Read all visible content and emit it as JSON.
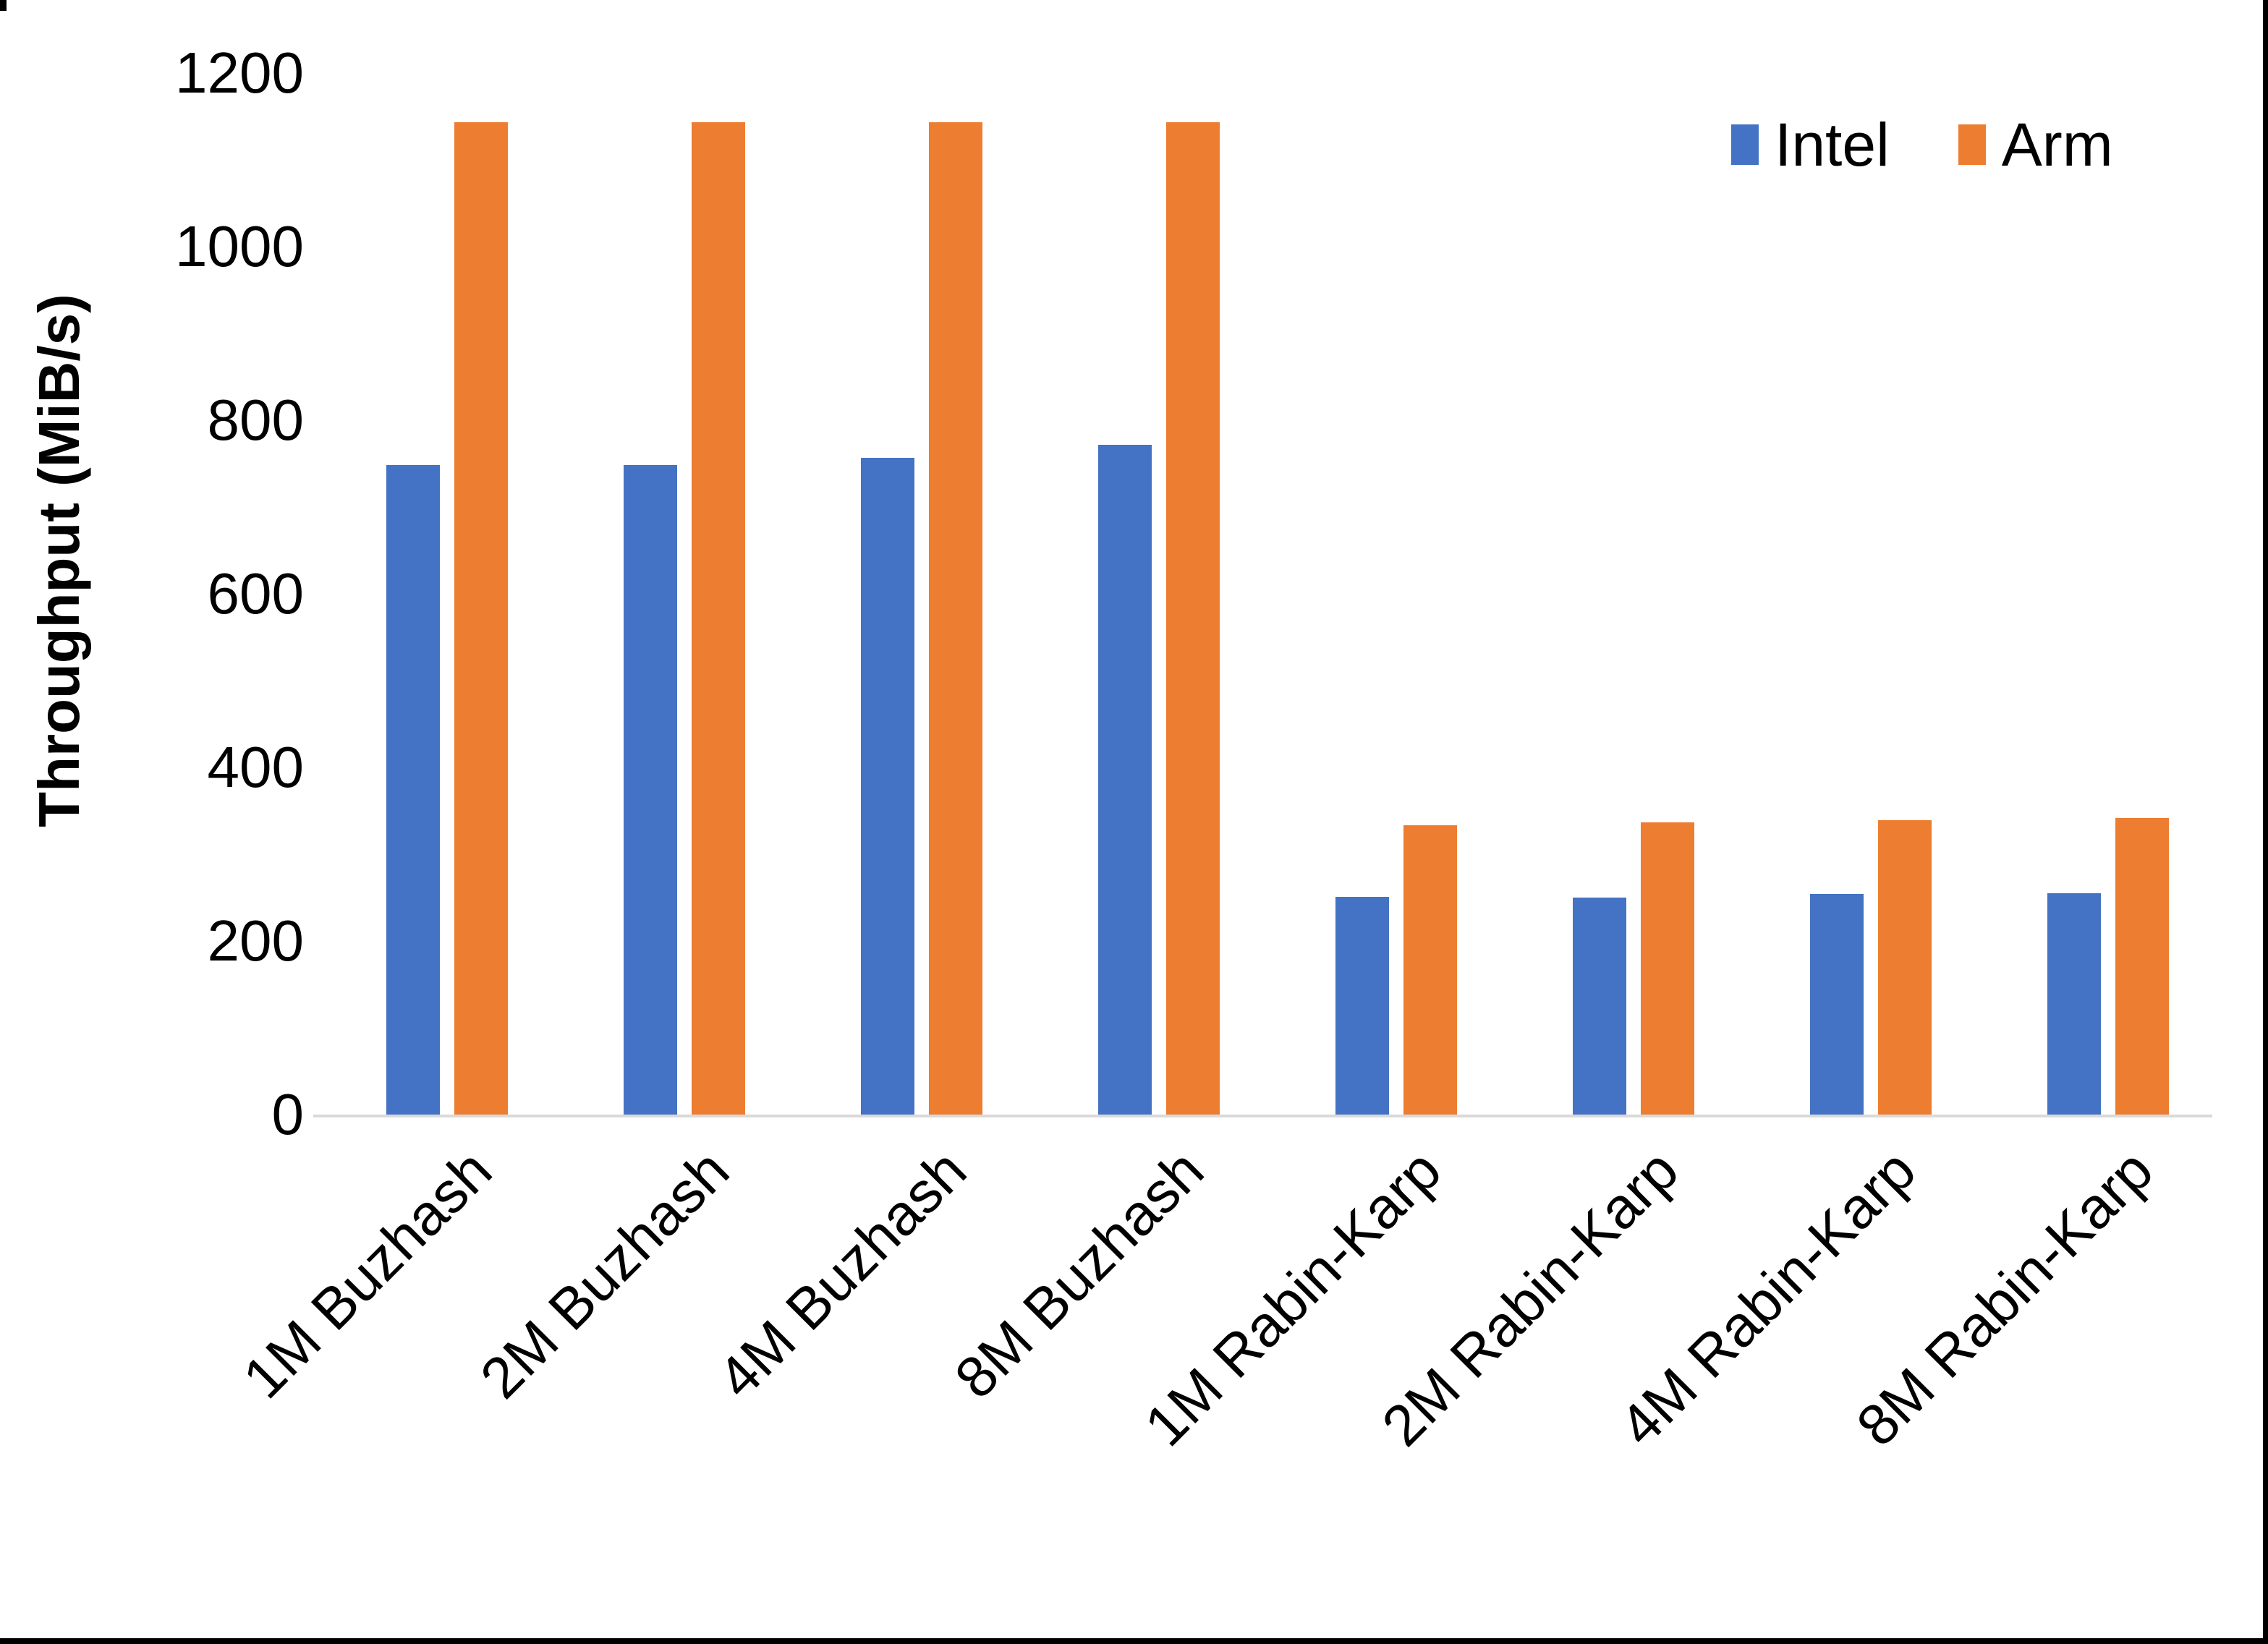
{
  "frame": {
    "border_color": "#000000"
  },
  "axis": {
    "line_color": "#d9d9d9",
    "text_color": "#000000"
  },
  "legend": {
    "position": "top-right"
  },
  "chart_data": {
    "type": "bar",
    "title": "",
    "xlabel": "",
    "ylabel": "Throughput (MiB/s)",
    "ylim": [
      0,
      1200
    ],
    "yticks": [
      0,
      200,
      400,
      600,
      800,
      1000,
      1200
    ],
    "grid": false,
    "legend_position": "top-right",
    "categories": [
      "1M Buzhash",
      "2M Buzhash",
      "4M Buzhash",
      "8M Buzhash",
      "1M Rabin-Karp",
      "2M Rabin-Karp",
      "4M Rabin-Karp",
      "8M Rabin-Karp"
    ],
    "series": [
      {
        "name": "Intel",
        "color": "#4472C4",
        "values": [
          748,
          748,
          757,
          772,
          251,
          250,
          254,
          255
        ]
      },
      {
        "name": "Arm",
        "color": "#ED7D31",
        "values": [
          1143,
          1143,
          1143,
          1143,
          333,
          337,
          339,
          342
        ]
      }
    ]
  }
}
